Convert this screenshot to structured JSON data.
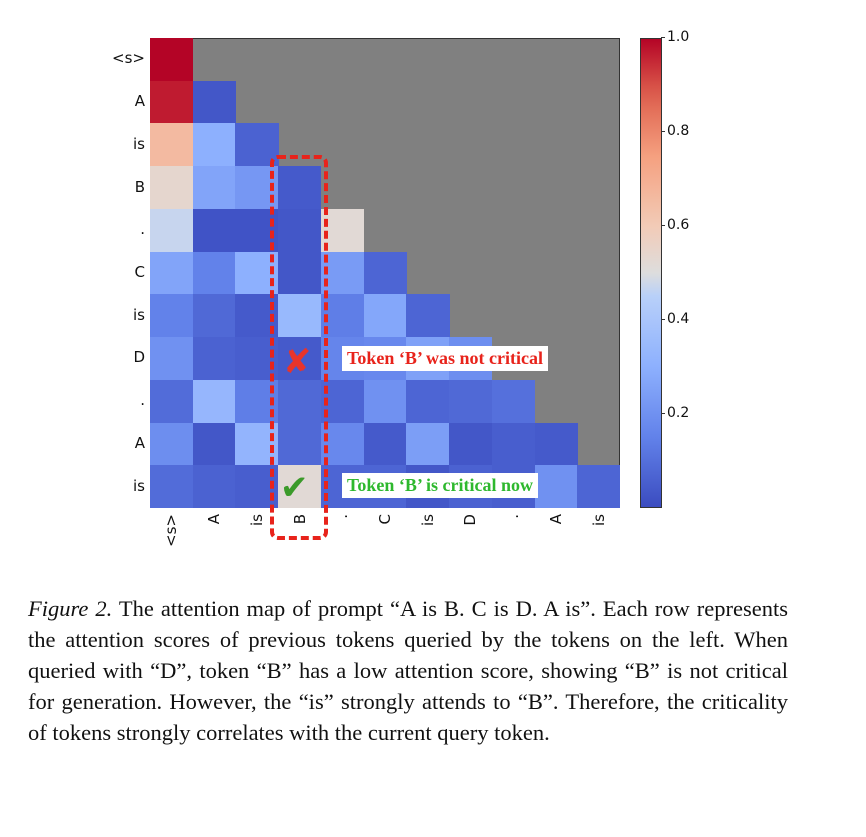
{
  "chart_data": {
    "type": "heatmap",
    "title": "",
    "row_labels": [
      "<s>",
      "A",
      "is",
      "B",
      ".",
      "C",
      "is",
      "D",
      ".",
      "A",
      "is"
    ],
    "col_labels": [
      "<s>",
      "A",
      "is",
      "B",
      ".",
      "C",
      "is",
      "D",
      ".",
      "A",
      "is"
    ],
    "values": [
      [
        1.0
      ],
      [
        0.97,
        0.03
      ],
      [
        0.66,
        0.3,
        0.06
      ],
      [
        0.54,
        0.26,
        0.22,
        0.04
      ],
      [
        0.47,
        0.02,
        0.02,
        0.03,
        0.52
      ],
      [
        0.26,
        0.15,
        0.3,
        0.03,
        0.23,
        0.07
      ],
      [
        0.15,
        0.08,
        0.04,
        0.34,
        0.14,
        0.27,
        0.07
      ],
      [
        0.2,
        0.06,
        0.05,
        0.04,
        0.16,
        0.17,
        0.25,
        0.19
      ],
      [
        0.09,
        0.33,
        0.14,
        0.08,
        0.07,
        0.2,
        0.07,
        0.08,
        0.1
      ],
      [
        0.19,
        0.03,
        0.32,
        0.08,
        0.17,
        0.04,
        0.24,
        0.03,
        0.05,
        0.04
      ],
      [
        0.09,
        0.06,
        0.05,
        0.52,
        0.07,
        0.07,
        0.03,
        0.06,
        0.05,
        0.2,
        0.07
      ]
    ],
    "masked_color": "#808080",
    "colormap": "coolwarm",
    "colorbar": {
      "range": [
        0,
        1.0
      ],
      "ticks": [
        "0.2",
        "0.4",
        "0.6",
        "0.8",
        "1.0"
      ]
    }
  },
  "annotations": {
    "highlight_column": "B",
    "not_critical": "Token ‘B’ was not critical",
    "critical": "Token ‘B’ is critical now",
    "not_critical_color": "#e8231b",
    "critical_color": "#2eb82e"
  },
  "caption": {
    "label": "Figure 2.",
    "text": " The attention map of prompt “A is B. C is D. A is”. Each row represents the attention scores of previous tokens queried by the tokens on the left.  When queried with “D”, token “B” has a low attention score, showing “B” is not critical for generation. However, the “is” strongly attends to “B”. Therefore, the criticality of tokens strongly correlates with the current query token."
  }
}
